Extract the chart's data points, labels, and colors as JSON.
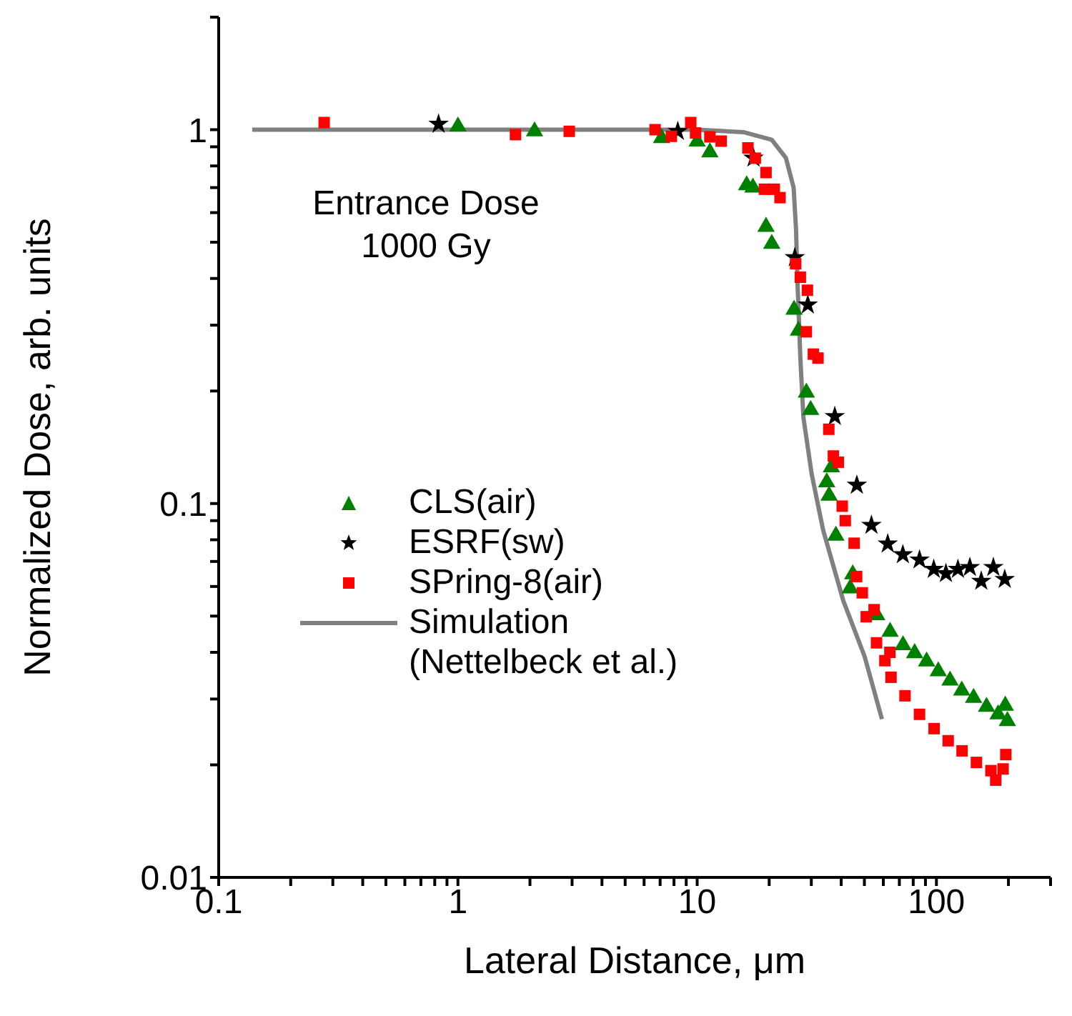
{
  "chart_data": {
    "type": "scatter",
    "xlabel": "Lateral Distance, μm",
    "ylabel": "Normalized Dose, arb. units",
    "annotations": [
      "Entrance Dose\n1000 Gy"
    ],
    "log": "xy",
    "legend": "left",
    "xlim": [
      0.1,
      300
    ],
    "ylim": [
      0.01,
      2
    ],
    "xticks": [
      0.1,
      {
        "value": 0.2,
        "label": null
      },
      {
        "value": 0.3,
        "label": null
      },
      {
        "value": 0.4,
        "label": null
      },
      {
        "value": 0.5,
        "label": null
      },
      {
        "value": 0.6,
        "label": null
      },
      {
        "value": 0.7,
        "label": null
      },
      {
        "value": 0.8,
        "label": null
      },
      {
        "value": 0.9,
        "label": null
      },
      1,
      {
        "value": 2,
        "label": null
      },
      {
        "value": 3,
        "label": null
      },
      {
        "value": 4,
        "label": null
      },
      {
        "value": 5,
        "label": null
      },
      {
        "value": 6,
        "label": null
      },
      {
        "value": 7,
        "label": null
      },
      {
        "value": 8,
        "label": null
      },
      {
        "value": 9,
        "label": null
      },
      10,
      {
        "value": 20,
        "label": null
      },
      {
        "value": 30,
        "label": null
      },
      {
        "value": 40,
        "label": null
      },
      {
        "value": 50,
        "label": null
      },
      {
        "value": 60,
        "label": null
      },
      {
        "value": 70,
        "label": null
      },
      {
        "value": 80,
        "label": null
      },
      {
        "value": 90,
        "label": null
      },
      100,
      {
        "value": 200,
        "label": null
      },
      {
        "value": 300,
        "label": null
      }
    ],
    "yticks": [
      0.01,
      {
        "value": 0.02,
        "label": null
      },
      {
        "value": 0.03,
        "label": null
      },
      {
        "value": 0.04,
        "label": null
      },
      {
        "value": 0.05,
        "label": null
      },
      {
        "value": 0.06,
        "label": null
      },
      {
        "value": 0.07,
        "label": null
      },
      {
        "value": 0.08,
        "label": null
      },
      {
        "value": 0.09,
        "label": null
      },
      0.1,
      {
        "value": 0.2,
        "label": null
      },
      {
        "value": 0.3,
        "label": null
      },
      {
        "value": 0.4,
        "label": null
      },
      {
        "value": 0.5,
        "label": null
      },
      {
        "value": 0.6,
        "label": null
      },
      {
        "value": 0.7,
        "label": null
      },
      {
        "value": 0.8,
        "label": null
      },
      {
        "value": 0.9,
        "label": null
      },
      1,
      {
        "value": 2,
        "label": null
      }
    ],
    "series": [
      {
        "name": "CLS(air)",
        "marker": "triangle",
        "color": "#008000",
        "x": [
          1.0,
          2.09,
          7.1,
          10,
          11.3,
          16.1,
          17.1,
          19.4,
          20.5,
          25.4,
          26.5,
          28.6,
          29.8,
          36.4,
          34.8,
          35.6,
          38,
          44.7,
          43.6,
          56.3,
          64,
          72.5,
          81.1,
          91,
          101.8,
          114,
          127.6,
          143,
          162,
          181,
          198,
          194
        ],
        "values": [
          1.02,
          0.99,
          0.95,
          0.93,
          0.87,
          0.71,
          0.7,
          0.55,
          0.495,
          0.33,
          0.29,
          0.198,
          0.178,
          0.125,
          0.114,
          0.105,
          0.082,
          0.0647,
          0.0593,
          0.0503,
          0.0454,
          0.0418,
          0.0398,
          0.0378,
          0.0356,
          0.0336,
          0.0316,
          0.0302,
          0.0286,
          0.0273,
          0.0262,
          0.0288
        ]
      },
      {
        "name": "ESRF(sw)",
        "marker": "star",
        "color": "#000000",
        "x": [
          0.83,
          8.3,
          17.2,
          25.6,
          29,
          37.6,
          46.5,
          53.5,
          62.6,
          72.4,
          85,
          97.5,
          109.6,
          123,
          138,
          154,
          173,
          193
        ],
        "values": [
          1.035,
          0.99,
          0.84,
          0.455,
          0.34,
          0.171,
          0.112,
          0.0875,
          0.078,
          0.073,
          0.0707,
          0.0667,
          0.065,
          0.0667,
          0.0675,
          0.062,
          0.0675,
          0.0627
        ]
      },
      {
        "name": "SPring-8(air)",
        "marker": "square",
        "color": "#ff0000",
        "x": [
          0.276,
          1.74,
          2.92,
          6.67,
          7.8,
          9.4,
          9.85,
          11.3,
          12.6,
          16.3,
          17.5,
          19.4,
          19.1,
          21,
          22.2,
          25.8,
          27,
          28.9,
          28.6,
          30.6,
          32,
          35.5,
          37.1,
          38.9,
          40.4,
          41.6,
          45.3,
          46.4,
          49,
          50.9,
          54.9,
          56.2,
          63.9,
          60.9,
          64.6,
          73.9,
          85,
          97.8,
          112,
          128,
          147,
          169,
          177,
          195,
          190
        ],
        "values": [
          1.045,
          0.97,
          0.99,
          1.0,
          0.96,
          1.045,
          0.98,
          0.957,
          0.932,
          0.894,
          0.839,
          0.768,
          0.693,
          0.693,
          0.658,
          0.438,
          0.403,
          0.372,
          0.288,
          0.251,
          0.245,
          0.158,
          0.134,
          0.129,
          0.0984,
          0.09,
          0.0783,
          0.0638,
          0.0577,
          0.0498,
          0.052,
          0.0424,
          0.04,
          0.038,
          0.0343,
          0.0306,
          0.0273,
          0.025,
          0.0232,
          0.0218,
          0.0203,
          0.0193,
          0.0182,
          0.0213,
          0.0195
        ]
      },
      {
        "name": "Simulation\n(Nettelbeck et al.)",
        "type": "line",
        "marker": "none",
        "line_style": "solid",
        "color": "#808080",
        "x": [
          0.138,
          10,
          15.6,
          20.5,
          23.5,
          25.3,
          25.9,
          26.3,
          27,
          27.8,
          30.1,
          33.6,
          40.8,
          50.1,
          59.2
        ],
        "values": [
          1.0,
          1.0,
          0.985,
          0.94,
          0.84,
          0.7,
          0.54,
          0.38,
          0.245,
          0.17,
          0.12,
          0.085,
          0.055,
          0.039,
          0.0265
        ]
      }
    ]
  }
}
